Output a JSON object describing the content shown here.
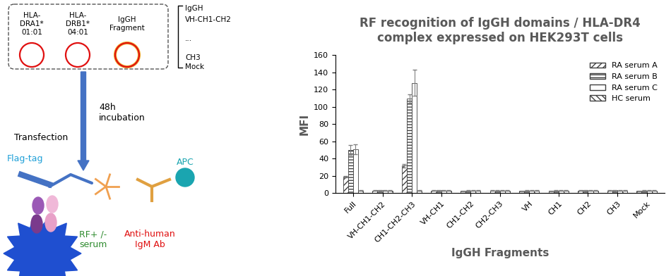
{
  "chart_data": {
    "type": "bar",
    "title": "RF recognition of IgGH domains / HLA-DR4\ncomplex expressed on HEK293T cells",
    "x_label": "IgGH Fragments",
    "y_label": "MFI",
    "categories": [
      "Full",
      "VH-CH1-CH2",
      "CH1-CH2-CH3",
      "VH-CH1",
      "CH1-CH2",
      "CH2-CH3",
      "VH",
      "CH1",
      "CH2",
      "CH3",
      "Mock"
    ],
    "series": [
      {
        "name": "RA serum A",
        "color": "#404040",
        "values": [
          19,
          3,
          32,
          3,
          2.5,
          3,
          2.5,
          2.5,
          3,
          3,
          2.5
        ],
        "errors": [
          1,
          0.5,
          2,
          0.5,
          0.5,
          0.5,
          0.5,
          0.5,
          0.5,
          0.5,
          0.5
        ]
      },
      {
        "name": "RA serum B",
        "color": "#404040",
        "values": [
          50,
          3.5,
          110,
          3.5,
          3,
          3,
          3,
          3,
          3.5,
          3.5,
          3
        ],
        "errors": [
          6,
          0.5,
          5,
          0.5,
          0.5,
          0.5,
          0.5,
          0.5,
          0.5,
          0.5,
          0.5
        ]
      },
      {
        "name": "RA serum C",
        "color": "#404040",
        "values": [
          51,
          3,
          128,
          3,
          3,
          3,
          3,
          3,
          3,
          3,
          3
        ],
        "errors": [
          6,
          0.5,
          15,
          0.5,
          0.5,
          0.5,
          0.5,
          0.5,
          0.5,
          0.5,
          0.5
        ]
      },
      {
        "name": "HC serum",
        "color": "#404040",
        "values": [
          3,
          3,
          3,
          3,
          3,
          3,
          3,
          3,
          3,
          3,
          3
        ],
        "errors": [
          0.5,
          0.5,
          0.5,
          0.5,
          0.5,
          0.5,
          0.5,
          0.5,
          0.5,
          0.5,
          0.5
        ]
      }
    ],
    "ylim": [
      0,
      160
    ],
    "yticks": [
      0,
      20,
      40,
      60,
      80,
      100,
      120,
      140,
      160
    ],
    "grid": false,
    "legend": "upper right"
  },
  "diagram": {
    "plasmids": [
      "HLA-\nDRA1*\n01:01",
      "HLA-\nDRB1*\n04:01",
      "IgGH\nFragment"
    ],
    "fragment_list": [
      "IgGH",
      "VH-CH1-CH2",
      "...",
      "CH3",
      "Mock"
    ],
    "step_left": "Transfection",
    "step_right": "48h\nincubation",
    "tag": "Flag-tag",
    "fluor": "APC",
    "serum": "RF+ /-\nserum",
    "secondary": "Anti-human\nIgM Ab"
  }
}
